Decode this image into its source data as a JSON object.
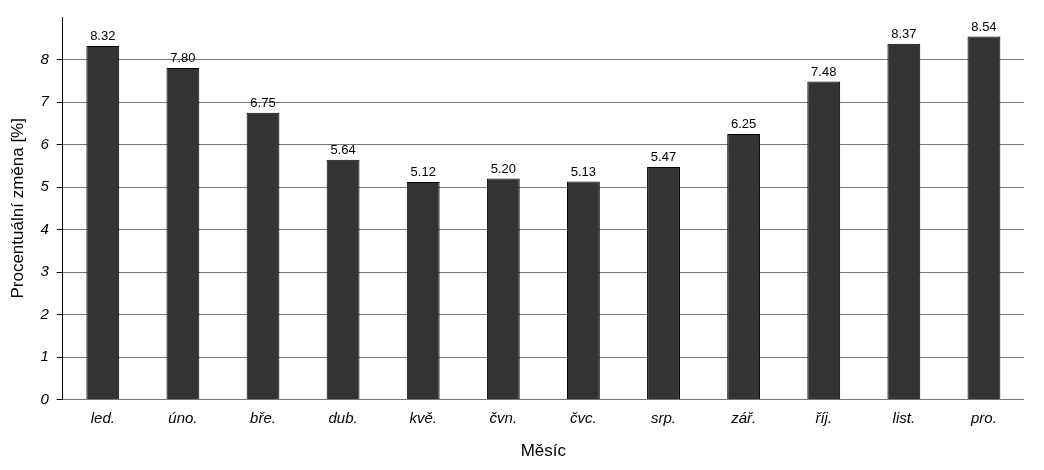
{
  "chart_data": {
    "type": "bar",
    "xlabel": "Měsíc",
    "ylabel": "Procentuální změna [%]",
    "categories": [
      "led.",
      "úno.",
      "bře.",
      "dub.",
      "kvě.",
      "čvn.",
      "čvc.",
      "srp.",
      "zář.",
      "říj.",
      "list.",
      "pro."
    ],
    "values": [
      8.32,
      7.8,
      6.75,
      5.64,
      5.12,
      5.2,
      5.13,
      5.47,
      6.25,
      7.48,
      8.37,
      8.54
    ],
    "value_labels": [
      "8.32",
      "7.80",
      "6.75",
      "5.64",
      "5.12",
      "5.20",
      "5.13",
      "5.47",
      "6.25",
      "7.48",
      "8.37",
      "8.54"
    ],
    "color": "#333333",
    "ylim": [
      0,
      9
    ],
    "yticks": [
      0,
      1,
      2,
      3,
      4,
      5,
      6,
      7,
      8
    ],
    "grid": "y",
    "legend": false
  }
}
